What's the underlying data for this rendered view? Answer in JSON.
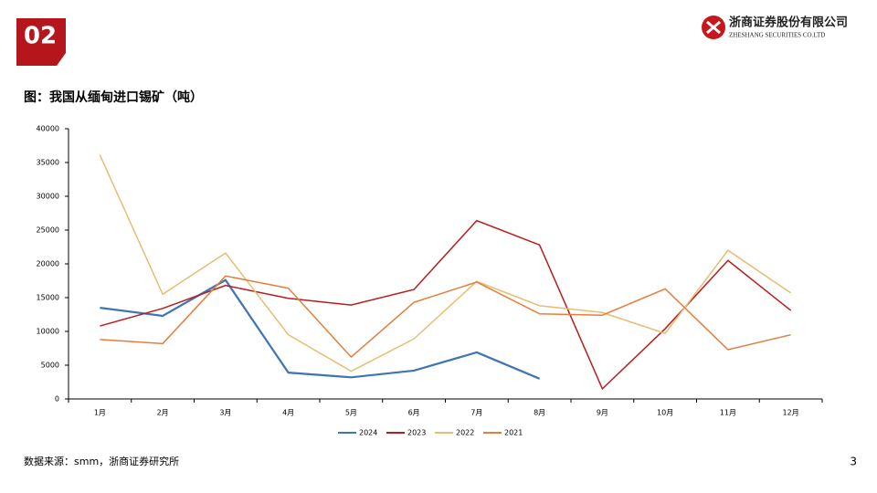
{
  "badge": "02",
  "logo": {
    "name": "浙商证券股份有限公司",
    "name_en": "ZHESHANG SECURITIES CO.LTD"
  },
  "source": "数据来源：smm，浙商证券研究所",
  "page_number": "3",
  "chart_data": {
    "type": "line",
    "title": "图：我国从缅甸进口锡矿（吨）",
    "categories": [
      "1月",
      "2月",
      "3月",
      "4月",
      "5月",
      "6月",
      "7月",
      "8月",
      "9月",
      "10月",
      "11月",
      "12月"
    ],
    "series": [
      {
        "name": "2024",
        "color": "#3f74b5",
        "values": [
          13500,
          12300,
          17600,
          3900,
          3200,
          4200,
          6900,
          3000,
          null,
          null,
          null,
          null
        ]
      },
      {
        "name": "2023",
        "color": "#b81c1c",
        "values": [
          10800,
          13400,
          16800,
          14900,
          13900,
          16200,
          26400,
          22800,
          1500,
          10400,
          20500,
          13100
        ]
      },
      {
        "name": "2022",
        "color": "#e8bd72",
        "values": [
          36100,
          15500,
          21600,
          9500,
          4100,
          8900,
          17400,
          13800,
          12800,
          9700,
          22000,
          15700
        ]
      },
      {
        "name": "2021",
        "color": "#e67d3c",
        "values": [
          8800,
          8200,
          18200,
          16400,
          6200,
          14300,
          17300,
          12600,
          12400,
          16300,
          7300,
          9500
        ]
      }
    ],
    "ylim": [
      0,
      40000
    ],
    "yticks": [
      0,
      5000,
      10000,
      15000,
      20000,
      25000,
      30000,
      35000,
      40000
    ],
    "grid": false,
    "legend": "bottom"
  }
}
